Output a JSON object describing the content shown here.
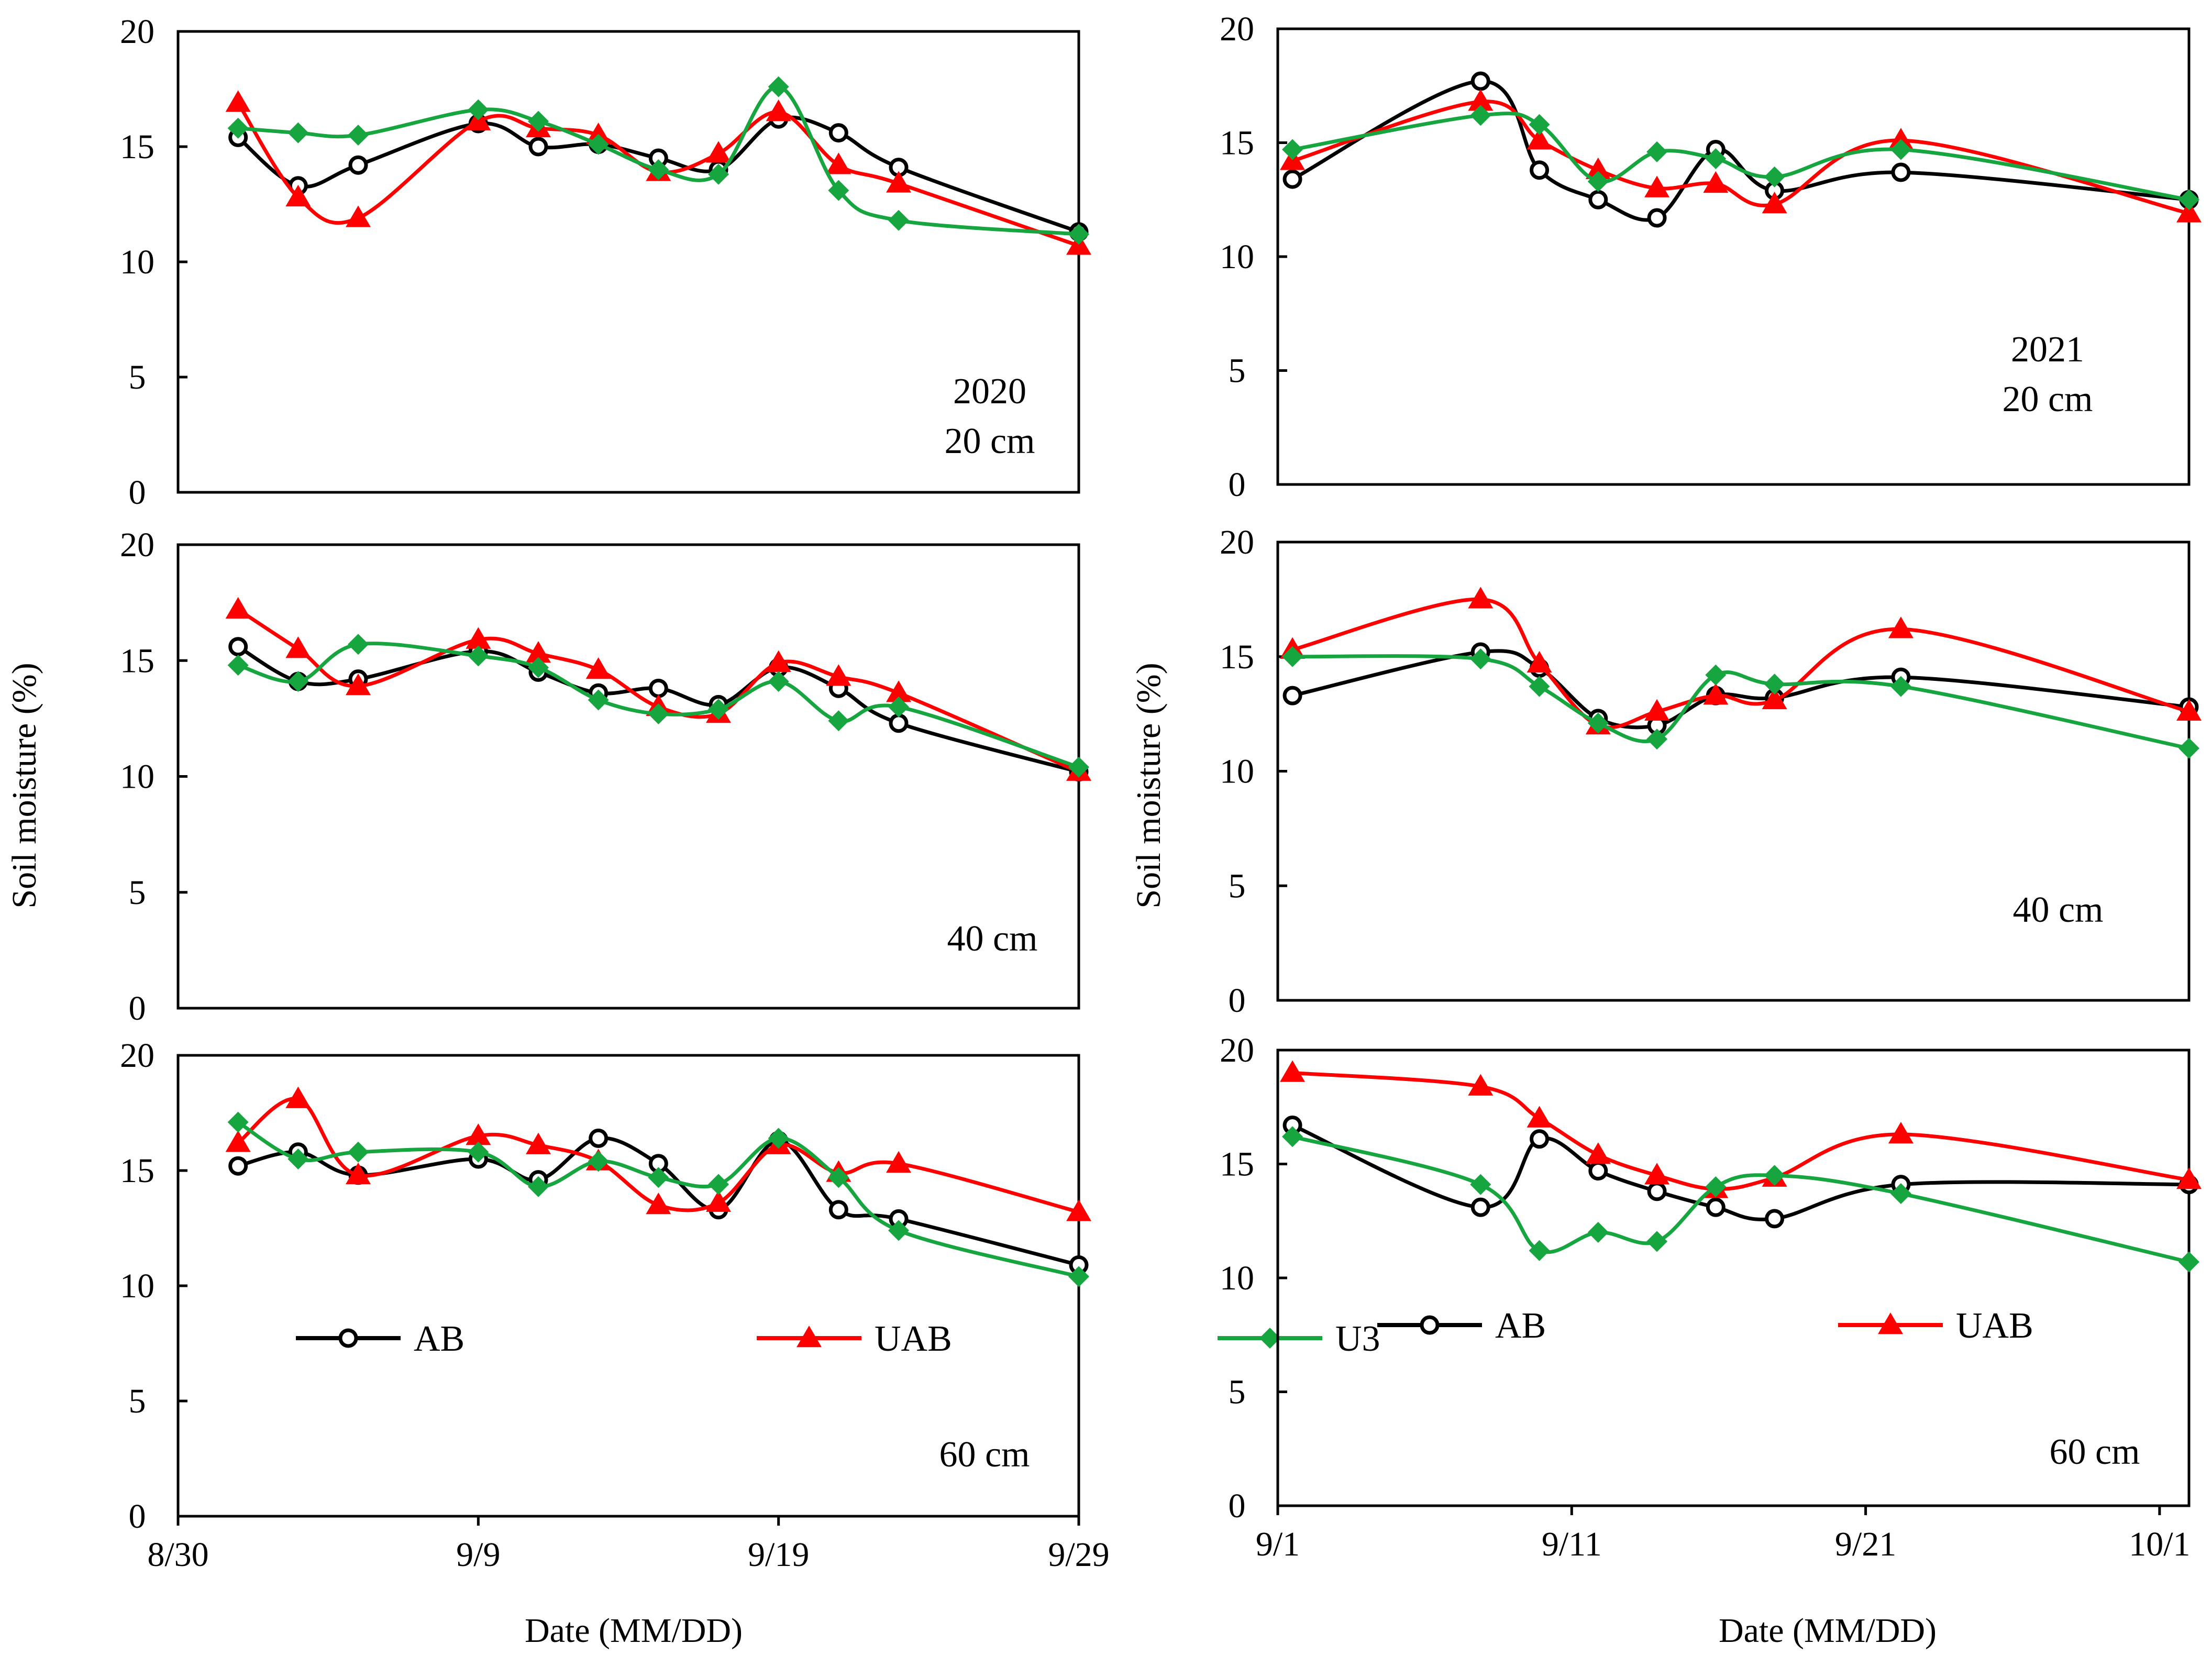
{
  "figure": {
    "y_label": "Soil moisture (%)",
    "x_label": "Date (MM/DD)"
  },
  "colors": {
    "AB": "#000000",
    "UAB": "#ff0000",
    "U3": "#17a540"
  },
  "legend": [
    "AB",
    "UAB",
    "U3"
  ],
  "chart_data": [
    {
      "id": "2020-20cm",
      "type": "line",
      "year": "2020",
      "depth": "20 cm",
      "title_lines": [
        "2020",
        "20 cm"
      ],
      "xlim": [
        0,
        30
      ],
      "ylim": [
        0,
        20
      ],
      "yticks": [
        0,
        5,
        10,
        15,
        20
      ],
      "xticks": [],
      "xticklabels": [],
      "series": [
        {
          "name": "AB",
          "x": [
            2,
            4,
            6,
            10,
            12,
            14,
            16,
            18,
            20,
            22,
            24,
            30
          ],
          "y": [
            15.4,
            13.3,
            14.2,
            16.0,
            15.0,
            15.1,
            14.5,
            14.0,
            16.2,
            15.6,
            14.1,
            11.3
          ]
        },
        {
          "name": "UAB",
          "x": [
            2,
            4,
            6,
            10,
            12,
            14,
            16,
            18,
            20,
            22,
            24,
            30
          ],
          "y": [
            16.9,
            12.8,
            11.9,
            16.1,
            15.8,
            15.5,
            13.9,
            14.7,
            16.5,
            14.2,
            13.4,
            10.7
          ]
        },
        {
          "name": "U3",
          "x": [
            2,
            4,
            6,
            10,
            12,
            14,
            16,
            18,
            20,
            22,
            24,
            30
          ],
          "y": [
            15.8,
            15.6,
            15.5,
            16.6,
            16.1,
            15.1,
            14.0,
            13.8,
            17.6,
            13.1,
            11.8,
            11.2
          ]
        }
      ]
    },
    {
      "id": "2021-20cm",
      "type": "line",
      "year": "2021",
      "depth": "20 cm",
      "title_lines": [
        "2021",
        "20 cm"
      ],
      "xlim": [
        0,
        31
      ],
      "ylim": [
        0,
        20
      ],
      "yticks": [
        0,
        5,
        10,
        15,
        20
      ],
      "xticks": [],
      "xticklabels": [],
      "series": [
        {
          "name": "AB",
          "x": [
            0.5,
            6.9,
            8.9,
            10.9,
            12.9,
            14.9,
            16.9,
            21.2,
            31
          ],
          "y": [
            13.4,
            17.7,
            13.8,
            12.5,
            11.7,
            14.7,
            12.9,
            13.7,
            12.5
          ]
        },
        {
          "name": "UAB",
          "x": [
            0.5,
            6.9,
            8.9,
            10.9,
            12.9,
            14.9,
            16.9,
            21.2,
            31
          ],
          "y": [
            14.2,
            16.8,
            15.1,
            13.8,
            13.0,
            13.2,
            12.3,
            15.1,
            11.9
          ]
        },
        {
          "name": "U3",
          "x": [
            0.5,
            6.9,
            8.9,
            10.9,
            12.9,
            14.9,
            16.9,
            21.2,
            31
          ],
          "y": [
            14.7,
            16.2,
            15.8,
            13.3,
            14.6,
            14.3,
            13.5,
            14.7,
            12.5
          ]
        }
      ]
    },
    {
      "id": "2020-40cm",
      "type": "line",
      "year": "2020",
      "depth": "40 cm",
      "title_lines": [
        "40 cm"
      ],
      "xlim": [
        0,
        30
      ],
      "ylim": [
        0,
        20
      ],
      "yticks": [
        0,
        5,
        10,
        15,
        20
      ],
      "xticks": [],
      "xticklabels": [],
      "series": [
        {
          "name": "AB",
          "x": [
            2,
            4,
            6,
            10,
            12,
            14,
            16,
            18,
            20,
            22,
            24,
            30
          ],
          "y": [
            15.6,
            14.1,
            14.2,
            15.4,
            14.5,
            13.6,
            13.8,
            13.1,
            14.7,
            13.8,
            12.3,
            10.2
          ]
        },
        {
          "name": "UAB",
          "x": [
            2,
            4,
            6,
            10,
            12,
            14,
            16,
            18,
            20,
            22,
            24,
            30
          ],
          "y": [
            17.2,
            15.5,
            13.9,
            15.9,
            15.3,
            14.6,
            13.0,
            12.7,
            14.9,
            14.3,
            13.6,
            10.2
          ]
        },
        {
          "name": "U3",
          "x": [
            2,
            4,
            6,
            10,
            12,
            14,
            16,
            18,
            20,
            22,
            24,
            30
          ],
          "y": [
            14.8,
            14.1,
            15.7,
            15.2,
            14.7,
            13.3,
            12.7,
            12.9,
            14.1,
            12.4,
            13.0,
            10.4
          ]
        }
      ]
    },
    {
      "id": "2021-40cm",
      "type": "line",
      "year": "2021",
      "depth": "40 cm",
      "title_lines": [
        "40 cm"
      ],
      "xlim": [
        0,
        31
      ],
      "ylim": [
        0,
        20
      ],
      "yticks": [
        0,
        5,
        10,
        15,
        20
      ],
      "xticks": [],
      "xticklabels": [],
      "series": [
        {
          "name": "AB",
          "x": [
            0.5,
            6.9,
            8.9,
            10.9,
            12.9,
            14.9,
            16.9,
            21.2,
            31
          ],
          "y": [
            13.3,
            15.2,
            14.5,
            12.3,
            12.0,
            13.3,
            13.2,
            14.1,
            12.8
          ]
        },
        {
          "name": "UAB",
          "x": [
            0.5,
            6.9,
            8.9,
            10.9,
            12.9,
            14.9,
            16.9,
            21.2,
            31
          ],
          "y": [
            15.3,
            17.5,
            14.7,
            12.0,
            12.6,
            13.3,
            13.1,
            16.2,
            12.6
          ]
        },
        {
          "name": "U3",
          "x": [
            0.5,
            6.9,
            8.9,
            10.9,
            12.9,
            14.9,
            16.9,
            21.2,
            31
          ],
          "y": [
            15.0,
            14.9,
            13.7,
            12.1,
            11.4,
            14.2,
            13.8,
            13.7,
            11.0
          ]
        }
      ]
    },
    {
      "id": "2020-60cm",
      "type": "line",
      "year": "2020",
      "depth": "60 cm",
      "title_lines": [
        "60 cm"
      ],
      "xlim": [
        0,
        30
      ],
      "ylim": [
        0,
        20
      ],
      "yticks": [
        0,
        5,
        10,
        15,
        20
      ],
      "xticks": [
        0,
        10,
        20,
        30
      ],
      "xticklabels": [
        "8/30",
        "9/9",
        "9/19",
        "9/29"
      ],
      "legend": true,
      "series": [
        {
          "name": "AB",
          "x": [
            2,
            4,
            6,
            10,
            12,
            14,
            16,
            18,
            20,
            22,
            24,
            30
          ],
          "y": [
            15.2,
            15.8,
            14.8,
            15.5,
            14.6,
            16.4,
            15.3,
            13.3,
            16.3,
            13.3,
            12.9,
            10.9
          ]
        },
        {
          "name": "UAB",
          "x": [
            2,
            4,
            6,
            10,
            12,
            14,
            16,
            18,
            20,
            22,
            24,
            30
          ],
          "y": [
            16.2,
            18.1,
            14.8,
            16.5,
            16.1,
            15.4,
            13.5,
            13.6,
            16.1,
            14.9,
            15.3,
            13.2
          ]
        },
        {
          "name": "U3",
          "x": [
            2,
            4,
            6,
            10,
            12,
            14,
            16,
            18,
            20,
            22,
            24,
            30
          ],
          "y": [
            17.1,
            15.5,
            15.8,
            15.8,
            14.3,
            15.4,
            14.7,
            14.4,
            16.4,
            14.7,
            12.4,
            10.4
          ]
        }
      ]
    },
    {
      "id": "2021-60cm",
      "type": "line",
      "year": "2021",
      "depth": "60 cm",
      "title_lines": [
        "60 cm"
      ],
      "xlim": [
        0,
        31
      ],
      "ylim": [
        0,
        20
      ],
      "yticks": [
        0,
        5,
        10,
        15,
        20
      ],
      "xticks": [
        0,
        10,
        20,
        30
      ],
      "xticklabels": [
        "9/1",
        "9/11",
        "9/21",
        "10/1"
      ],
      "legend": true,
      "series": [
        {
          "name": "AB",
          "x": [
            0.5,
            6.9,
            8.9,
            10.9,
            12.9,
            14.9,
            16.9,
            21.2,
            31
          ],
          "y": [
            16.7,
            13.1,
            16.1,
            14.7,
            13.8,
            13.1,
            12.6,
            14.1,
            14.1
          ]
        },
        {
          "name": "UAB",
          "x": [
            0.5,
            6.9,
            8.9,
            10.9,
            12.9,
            14.9,
            16.9,
            21.2,
            31
          ],
          "y": [
            19.0,
            18.4,
            17.0,
            15.4,
            14.5,
            13.9,
            14.4,
            16.3,
            14.3
          ]
        },
        {
          "name": "U3",
          "x": [
            0.5,
            6.9,
            8.9,
            10.9,
            12.9,
            14.9,
            16.9,
            21.2,
            31
          ],
          "y": [
            16.2,
            14.1,
            11.2,
            12.0,
            11.6,
            14.0,
            14.5,
            13.7,
            10.7
          ]
        }
      ]
    }
  ]
}
